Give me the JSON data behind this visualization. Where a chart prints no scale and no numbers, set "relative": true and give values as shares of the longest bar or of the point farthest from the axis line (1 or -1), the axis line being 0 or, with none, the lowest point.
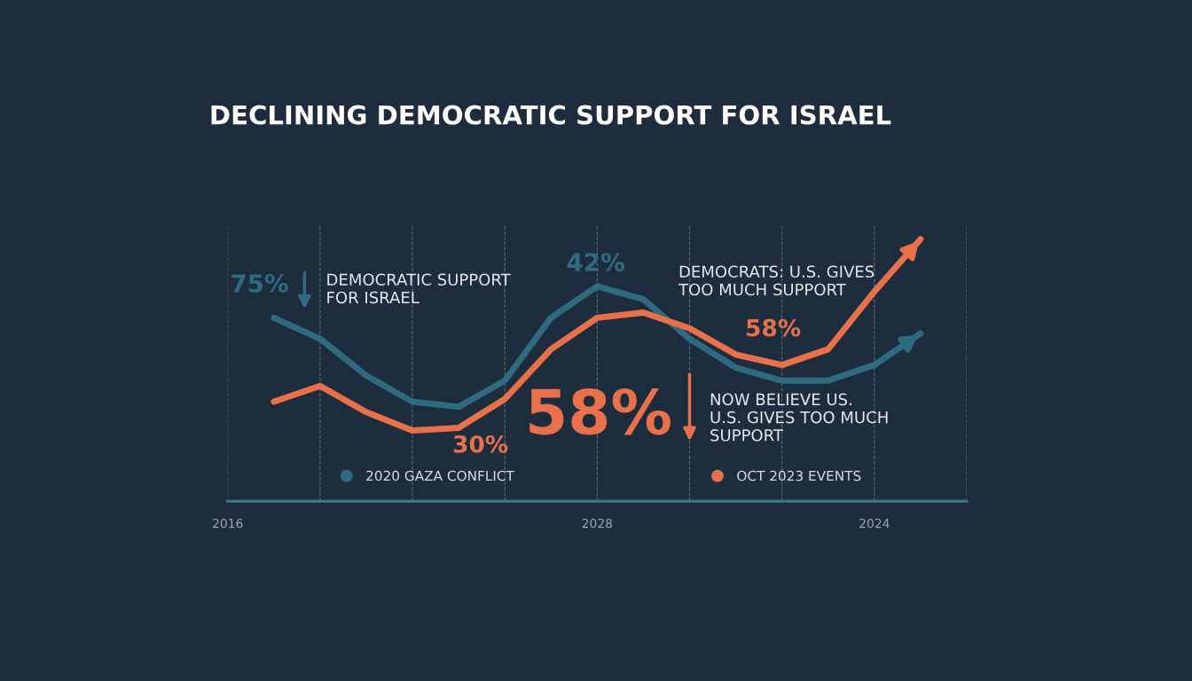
{
  "chart_data": {
    "type": "line",
    "title": "DECLINING DEMOCRATIC SUPPORT FOR ISRAEL",
    "relative": true,
    "categories": [
      "2016",
      null,
      null,
      null,
      null,
      null,
      null,
      null,
      "2028",
      null,
      null,
      null,
      null,
      null,
      "2024",
      null,
      null
    ],
    "grid": "x",
    "legend": "bottom",
    "marker": "none",
    "line_style": "solid",
    "series": [
      {
        "name": "2020 GAZA CONFLICT",
        "color": "#2f6b80",
        "values": [
          null,
          0.7,
          0.62,
          0.48,
          0.38,
          0.36,
          0.46,
          0.7,
          0.82,
          0.77,
          0.62,
          0.51,
          0.46,
          0.46,
          0.52,
          0.64,
          null
        ]
      },
      {
        "name": "OCT 2023 EVENTS",
        "color": "#e8704a",
        "values": [
          null,
          0.38,
          0.44,
          0.34,
          0.27,
          0.28,
          0.39,
          0.58,
          0.7,
          0.72,
          0.66,
          0.56,
          0.52,
          0.58,
          0.8,
          1.0,
          null
        ]
      }
    ],
    "annotations": [
      "75%",
      "DEMOCRATIC SUPPORT\nFOR ISRAEL",
      "42%",
      "DEMOCRATS: U.S. GIVES\nTOO MUCH SUPPORT",
      "58%",
      "58%",
      "NOW BELIEVE US.\nU.S. GIVES TOO MUCH\nSUPPORT",
      "30%"
    ]
  }
}
